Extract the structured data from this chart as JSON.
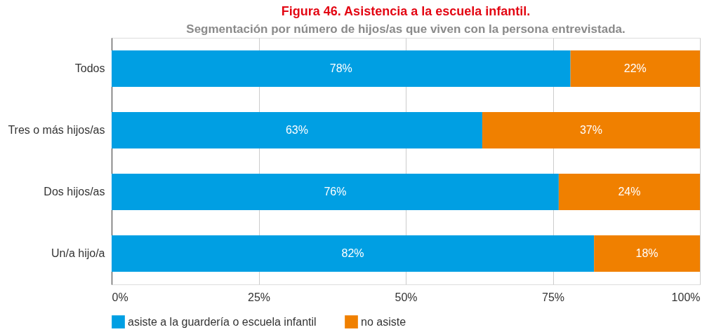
{
  "chart_data": {
    "type": "bar",
    "orientation": "horizontal",
    "stacked": true,
    "title": "Figura 46. Asistencia a la escuela infantil.",
    "subtitle": "Segmentación por número de hijos/as que viven con la persona entrevistada.",
    "categories": [
      "Todos",
      "Tres o más hijos/as",
      "Dos hijos/as",
      "Un/a hijo/a"
    ],
    "series": [
      {
        "name": "asiste a la guardería o escuela infantil",
        "color": "#009fe3",
        "values": [
          78,
          63,
          76,
          82
        ],
        "value_labels": [
          "78%",
          "63%",
          "76%",
          "82%"
        ]
      },
      {
        "name": "no asiste",
        "color": "#f08000",
        "values": [
          22,
          37,
          24,
          18
        ],
        "value_labels": [
          "22%",
          "37%",
          "24%",
          "18%"
        ]
      }
    ],
    "xlim": [
      0,
      100
    ],
    "xticks": [
      {
        "value": 0,
        "label": "0%"
      },
      {
        "value": 25,
        "label": "25%"
      },
      {
        "value": 50,
        "label": "50%"
      },
      {
        "value": 75,
        "label": "75%"
      },
      {
        "value": 100,
        "label": "100%"
      }
    ],
    "grid": "x",
    "legend": "bottom"
  }
}
